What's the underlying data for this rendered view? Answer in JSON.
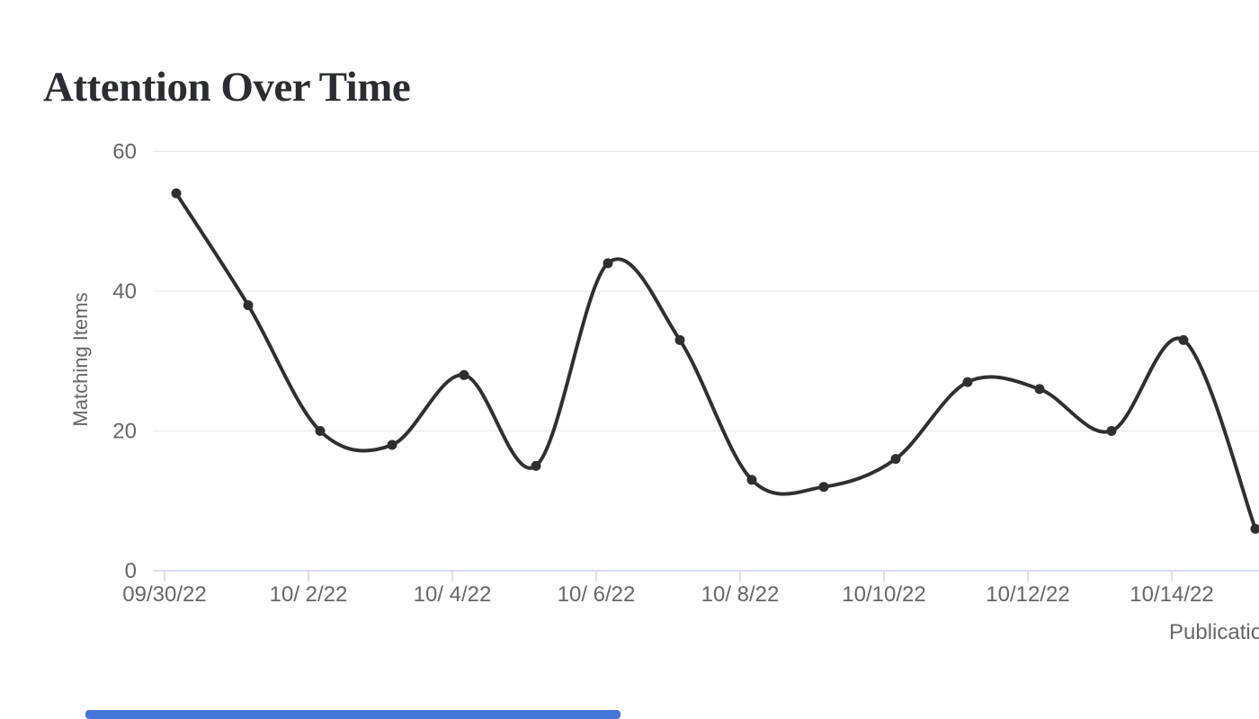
{
  "chart_data": {
    "type": "line",
    "title": "Attention Over Time",
    "xlabel": "Publication Date",
    "ylabel": "Matching Items",
    "x": [
      "09/30/22",
      "10/ 1/22",
      "10/ 2/22",
      "10/ 3/22",
      "10/ 4/22",
      "10/ 5/22",
      "10/ 6/22",
      "10/ 7/22",
      "10/ 8/22",
      "10/ 9/22",
      "10/10/22",
      "10/11/22",
      "10/12/22",
      "10/13/22",
      "10/14/22",
      "10/15/22"
    ],
    "values": [
      54,
      38,
      20,
      18,
      28,
      15,
      44,
      33,
      13,
      12,
      16,
      27,
      26,
      20,
      33,
      6
    ],
    "x_tick_labels": [
      "09/30/22",
      "10/ 2/22",
      "10/ 4/22",
      "10/ 6/22",
      "10/ 8/22",
      "10/10/22",
      "10/12/22",
      "10/14/22"
    ],
    "y_ticks": [
      0,
      20,
      40,
      60
    ],
    "ylim": [
      0,
      62
    ],
    "grid": "horizontal-only",
    "legend": "none",
    "marker": "filled-circle",
    "colors": {
      "line": "#2f2f2f",
      "marker": "#2f2f2f",
      "grid": "#e6e6e6",
      "axis_line": "#ccd6eb",
      "tick": "#ccd6eb",
      "tick_label": "#666666",
      "axis_title": "#666666",
      "title": "#2b2d33",
      "scrollbar": "#4376d8",
      "background": "#ffffff"
    }
  },
  "scrollbar": {
    "orientation": "horizontal",
    "position": "bottom-left"
  }
}
